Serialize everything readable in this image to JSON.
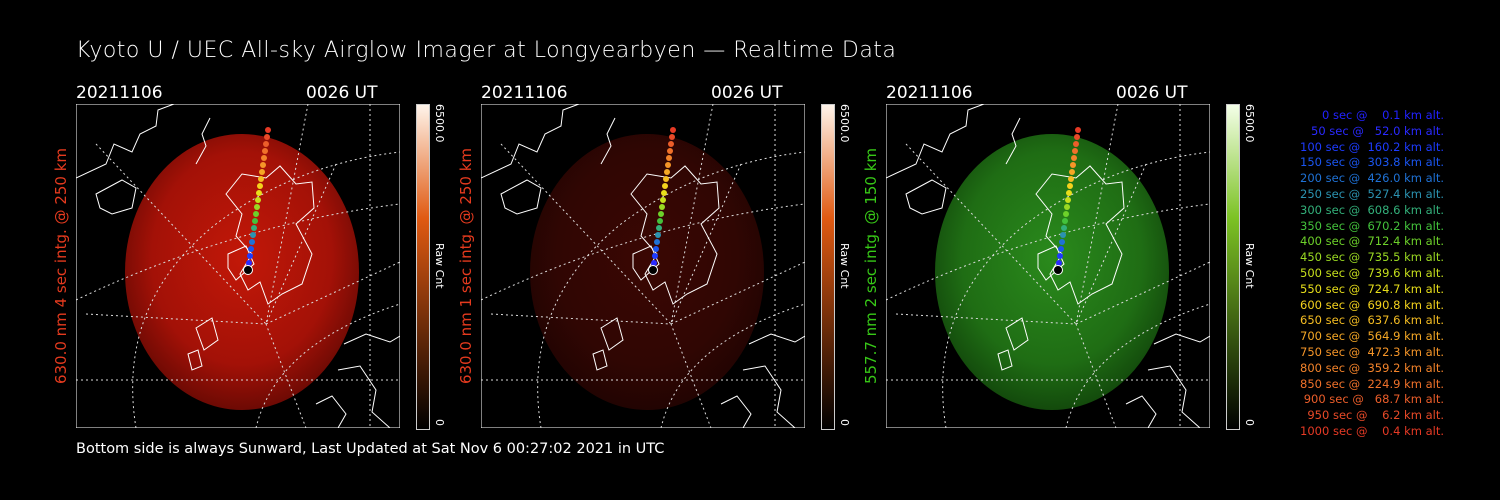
{
  "title": "Kyoto U / UEC All-sky Airglow Imager at Longyearbyen — Realtime Data",
  "footer": "Bottom side is always Sunward, Last Updated at Sat Nov  6 00:27:02 2021 in UTC",
  "colors": {
    "red_label": "#e53a1e",
    "green_label": "#37c817"
  },
  "panels": [
    {
      "date": "20211106",
      "time": "0026 UT",
      "side_label": "630.0 nm 4 sec intg. @ 250 km",
      "label_color": "#e53a1e",
      "cbar_max": "6500.0",
      "cbar_min": "0",
      "cbar_unit": "Raw Cnt",
      "theme": "red-bright"
    },
    {
      "date": "20211106",
      "time": "0026 UT",
      "side_label": "630.0 nm 1 sec intg. @ 250 km",
      "label_color": "#e53a1e",
      "cbar_max": "6500.0",
      "cbar_min": "0",
      "cbar_unit": "Raw Cnt",
      "theme": "red-dim"
    },
    {
      "date": "20211106",
      "time": "0026 UT",
      "side_label": "557.7 nm 2 sec intg. @ 150 km",
      "label_color": "#37c817",
      "cbar_max": "6500.0",
      "cbar_min": "0",
      "cbar_unit": "Raw Cnt",
      "theme": "green"
    }
  ],
  "legend": [
    {
      "text": "0 sec @    0.1 km alt.",
      "color": "#2222ff"
    },
    {
      "text": "50 sec @   52.0 km alt.",
      "color": "#2a2aff"
    },
    {
      "text": "100 sec @  160.2 km alt.",
      "color": "#1d3bff"
    },
    {
      "text": "150 sec @  303.8 km alt.",
      "color": "#1a55f0"
    },
    {
      "text": "200 sec @  426.0 km alt.",
      "color": "#1f72d6"
    },
    {
      "text": "250 sec @  527.4 km alt.",
      "color": "#2b92b0"
    },
    {
      "text": "300 sec @  608.6 km alt.",
      "color": "#33b07a"
    },
    {
      "text": "350 sec @  670.2 km alt.",
      "color": "#43c23b"
    },
    {
      "text": "400 sec @  712.4 km alt.",
      "color": "#6dd12a"
    },
    {
      "text": "450 sec @  735.5 km alt.",
      "color": "#9ad922"
    },
    {
      "text": "500 sec @  739.6 km alt.",
      "color": "#c6df1c"
    },
    {
      "text": "550 sec @  724.7 km alt.",
      "color": "#e8df1a"
    },
    {
      "text": "600 sec @  690.8 km alt.",
      "color": "#f4d21d"
    },
    {
      "text": "650 sec @  637.6 km alt.",
      "color": "#f5bd22"
    },
    {
      "text": "700 sec @  564.9 km alt.",
      "color": "#f5a825"
    },
    {
      "text": "750 sec @  472.3 km alt.",
      "color": "#f59528"
    },
    {
      "text": "800 sec @  359.2 km alt.",
      "color": "#f3832a"
    },
    {
      "text": "850 sec @  224.9 km alt.",
      "color": "#f0712a"
    },
    {
      "text": "900 sec @   68.7 km alt.",
      "color": "#ec5e2a"
    },
    {
      "text": "950 sec @    6.2 km alt.",
      "color": "#e94a28"
    },
    {
      "text": "1000 sec @    0.4 km alt.",
      "color": "#e63a25"
    }
  ]
}
